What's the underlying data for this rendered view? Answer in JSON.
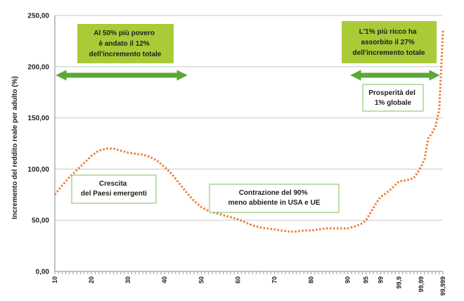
{
  "chart_data": {
    "type": "line",
    "ylabel": "Incremento del reddito reale per adulto (%)",
    "ylim": [
      0,
      250
    ],
    "y_ticks": [
      "0,00",
      "50,00",
      "100,00",
      "150,00",
      "200,00",
      "250,00"
    ],
    "y_tick_values": [
      0,
      50,
      100,
      150,
      200,
      250
    ],
    "x_ticks": [
      "10",
      "20",
      "30",
      "40",
      "50",
      "60",
      "70",
      "80",
      "90",
      "95",
      "99",
      "99,9",
      "99,99",
      "99,999"
    ],
    "x_tick_positions": [
      10,
      20,
      30,
      40,
      50,
      60,
      70,
      80,
      90,
      95,
      99,
      104,
      110,
      116
    ],
    "xlim": [
      10,
      116
    ],
    "grid": "horizontal",
    "series": [
      {
        "color": "#f07830",
        "style": "dotted",
        "x": [
          10,
          12,
          14,
          16,
          18,
          20,
          22,
          24,
          26,
          28,
          30,
          32,
          34,
          36,
          38,
          40,
          42,
          44,
          46,
          48,
          50,
          52,
          54,
          56,
          58,
          60,
          62,
          64,
          66,
          68,
          70,
          72,
          74,
          76,
          78,
          80,
          82,
          84,
          86,
          88,
          90,
          92,
          94,
          95,
          96,
          98,
          99,
          100,
          102,
          104,
          106,
          108,
          109,
          110,
          111,
          112,
          113,
          114,
          115,
          116
        ],
        "values": [
          75,
          84,
          92,
          99,
          106,
          113,
          118,
          120,
          120,
          118,
          116,
          115,
          114,
          112,
          108,
          102,
          95,
          86,
          77,
          69,
          63,
          59,
          57,
          55,
          53,
          51,
          48,
          45,
          43,
          42,
          41,
          40,
          39,
          39,
          40,
          40,
          41,
          42,
          42,
          42,
          42,
          44,
          47,
          50,
          56,
          68,
          73,
          75,
          81,
          88,
          89,
          91,
          96,
          102,
          110,
          130,
          135,
          142,
          158,
          235
        ]
      }
    ],
    "annotations": [
      {
        "id": "bottom50",
        "lines": [
          "Al 50% più povero",
          "è andato il 12%",
          "dell'incremento totale"
        ]
      },
      {
        "id": "top1",
        "lines": [
          "L'1% più ricco ha",
          "assorbito il 27%",
          "dell'incremento totale"
        ]
      },
      {
        "id": "prosperity",
        "lines": [
          "Prosperità del",
          "1% globale"
        ]
      },
      {
        "id": "growth",
        "lines": [
          "Crescita",
          "del Paesi emergenti"
        ]
      },
      {
        "id": "contraction",
        "lines": [
          "Contrazione del 90%",
          "meno abbiente in USA e UE"
        ]
      }
    ],
    "colors": {
      "highlight_fill": "#a9cb37",
      "arrow": "#5ca73a",
      "box_border": "#7fbf5a",
      "grid": "#c8c8c8",
      "axis": "#8a8a8a"
    }
  }
}
